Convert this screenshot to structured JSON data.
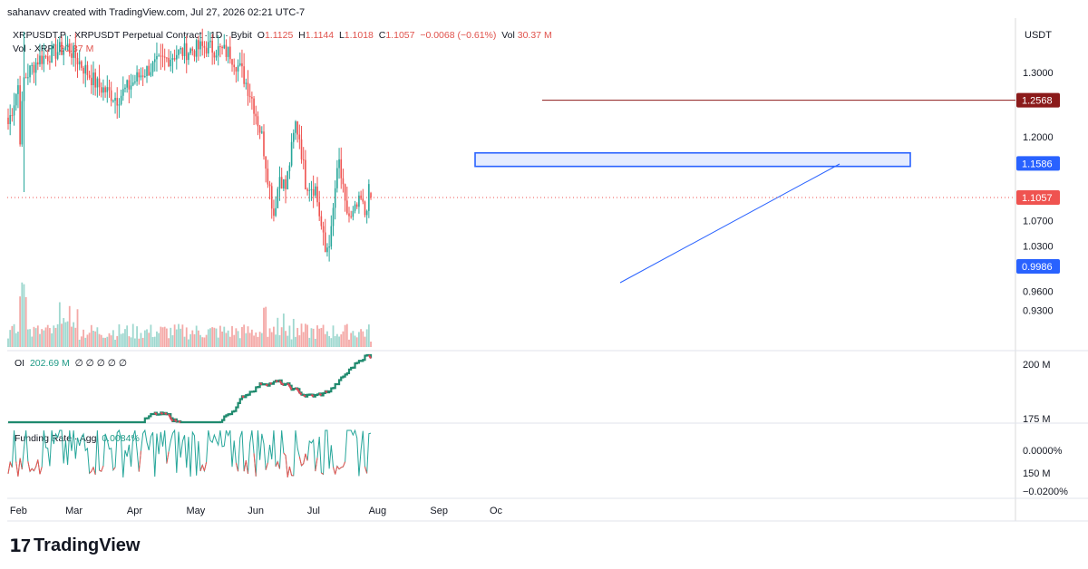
{
  "credit": "sahanavv created with TradingView.com, Jul 27, 2026 02:21 UTC-7",
  "brand": "TradingView",
  "legend": {
    "symbol": "XRPUSDT.P · XRPUSDT Perpetual Contract · 1D · Bybit",
    "open_label": "O",
    "open": "1.1125",
    "high_label": "H",
    "high": "1.1144",
    "low_label": "L",
    "low": "1.1018",
    "close_label": "C",
    "close": "1.1057",
    "change": "−0.0068 (−0.61%)",
    "vol_label": "Vol",
    "vol_value": "30.37 M",
    "vol_line_label": "Vol · XRP",
    "vol_line_value": "30.37 M",
    "oi_label": "OI",
    "oi_value": "202.69 M",
    "oi_extra": "∅ ∅ ∅ ∅ ∅",
    "funding_label": "Funding Rate · Agg",
    "funding_value": "0.0084%"
  },
  "colors": {
    "up": "#26a69a",
    "down": "#ef5350",
    "up_dark": "#1f8a6e",
    "down_dark": "#d94a59",
    "blue": "#2962ff",
    "maroon": "#8b1a1a",
    "funding": "#26a69a"
  },
  "chart_data": [
    {
      "type": "candlestick",
      "title": "XRPUSDT.P · XRPUSDT Perpetual Contract · 1D · Bybit",
      "currency": "USDT",
      "x_ticks": [
        "Feb",
        "Mar",
        "Apr",
        "May",
        "Jun",
        "Jul",
        "Aug",
        "Sep",
        "Oc"
      ],
      "y_ticks": [
        "1.3000",
        "1.2000",
        "1.0700",
        "1.0300",
        "0.9600",
        "0.9300"
      ],
      "y_tick_values": [
        1.3,
        1.2,
        1.07,
        1.03,
        0.96,
        0.93
      ],
      "price_labels": [
        {
          "value": 1.2568,
          "text": "1.2568",
          "color": "#8b1a1a"
        },
        {
          "value": 1.1586,
          "text": "1.1586",
          "color": "#2962ff"
        },
        {
          "value": 1.1057,
          "text": "1.1057",
          "color": "#ef5350"
        },
        {
          "value": 0.9986,
          "text": "0.9986",
          "color": "#2962ff"
        }
      ],
      "resistance_line": 1.2568,
      "resistance_zone": [
        1.154,
        1.175
      ],
      "trendline": {
        "from": [
          "Jun 22",
          0.999
        ],
        "to": [
          "Aug 17",
          1.155
        ]
      },
      "candles_visible_from": "Jan 27",
      "candles_visible_to": "Jul 26",
      "last": {
        "open": 1.1125,
        "high": 1.1144,
        "low": 1.1018,
        "close": 1.1057
      }
    },
    {
      "type": "step-line",
      "name": "OI",
      "y_ticks": [
        "200 M",
        "175 M",
        "150 M"
      ],
      "y_tick_values": [
        200,
        175,
        150
      ],
      "last": 202.69
    },
    {
      "type": "line",
      "name": "Funding Rate · Agg",
      "y_ticks": [
        "0.0000%",
        "−0.0200%"
      ],
      "y_tick_values": [
        0.0,
        -0.02
      ],
      "last": 0.0084
    }
  ]
}
